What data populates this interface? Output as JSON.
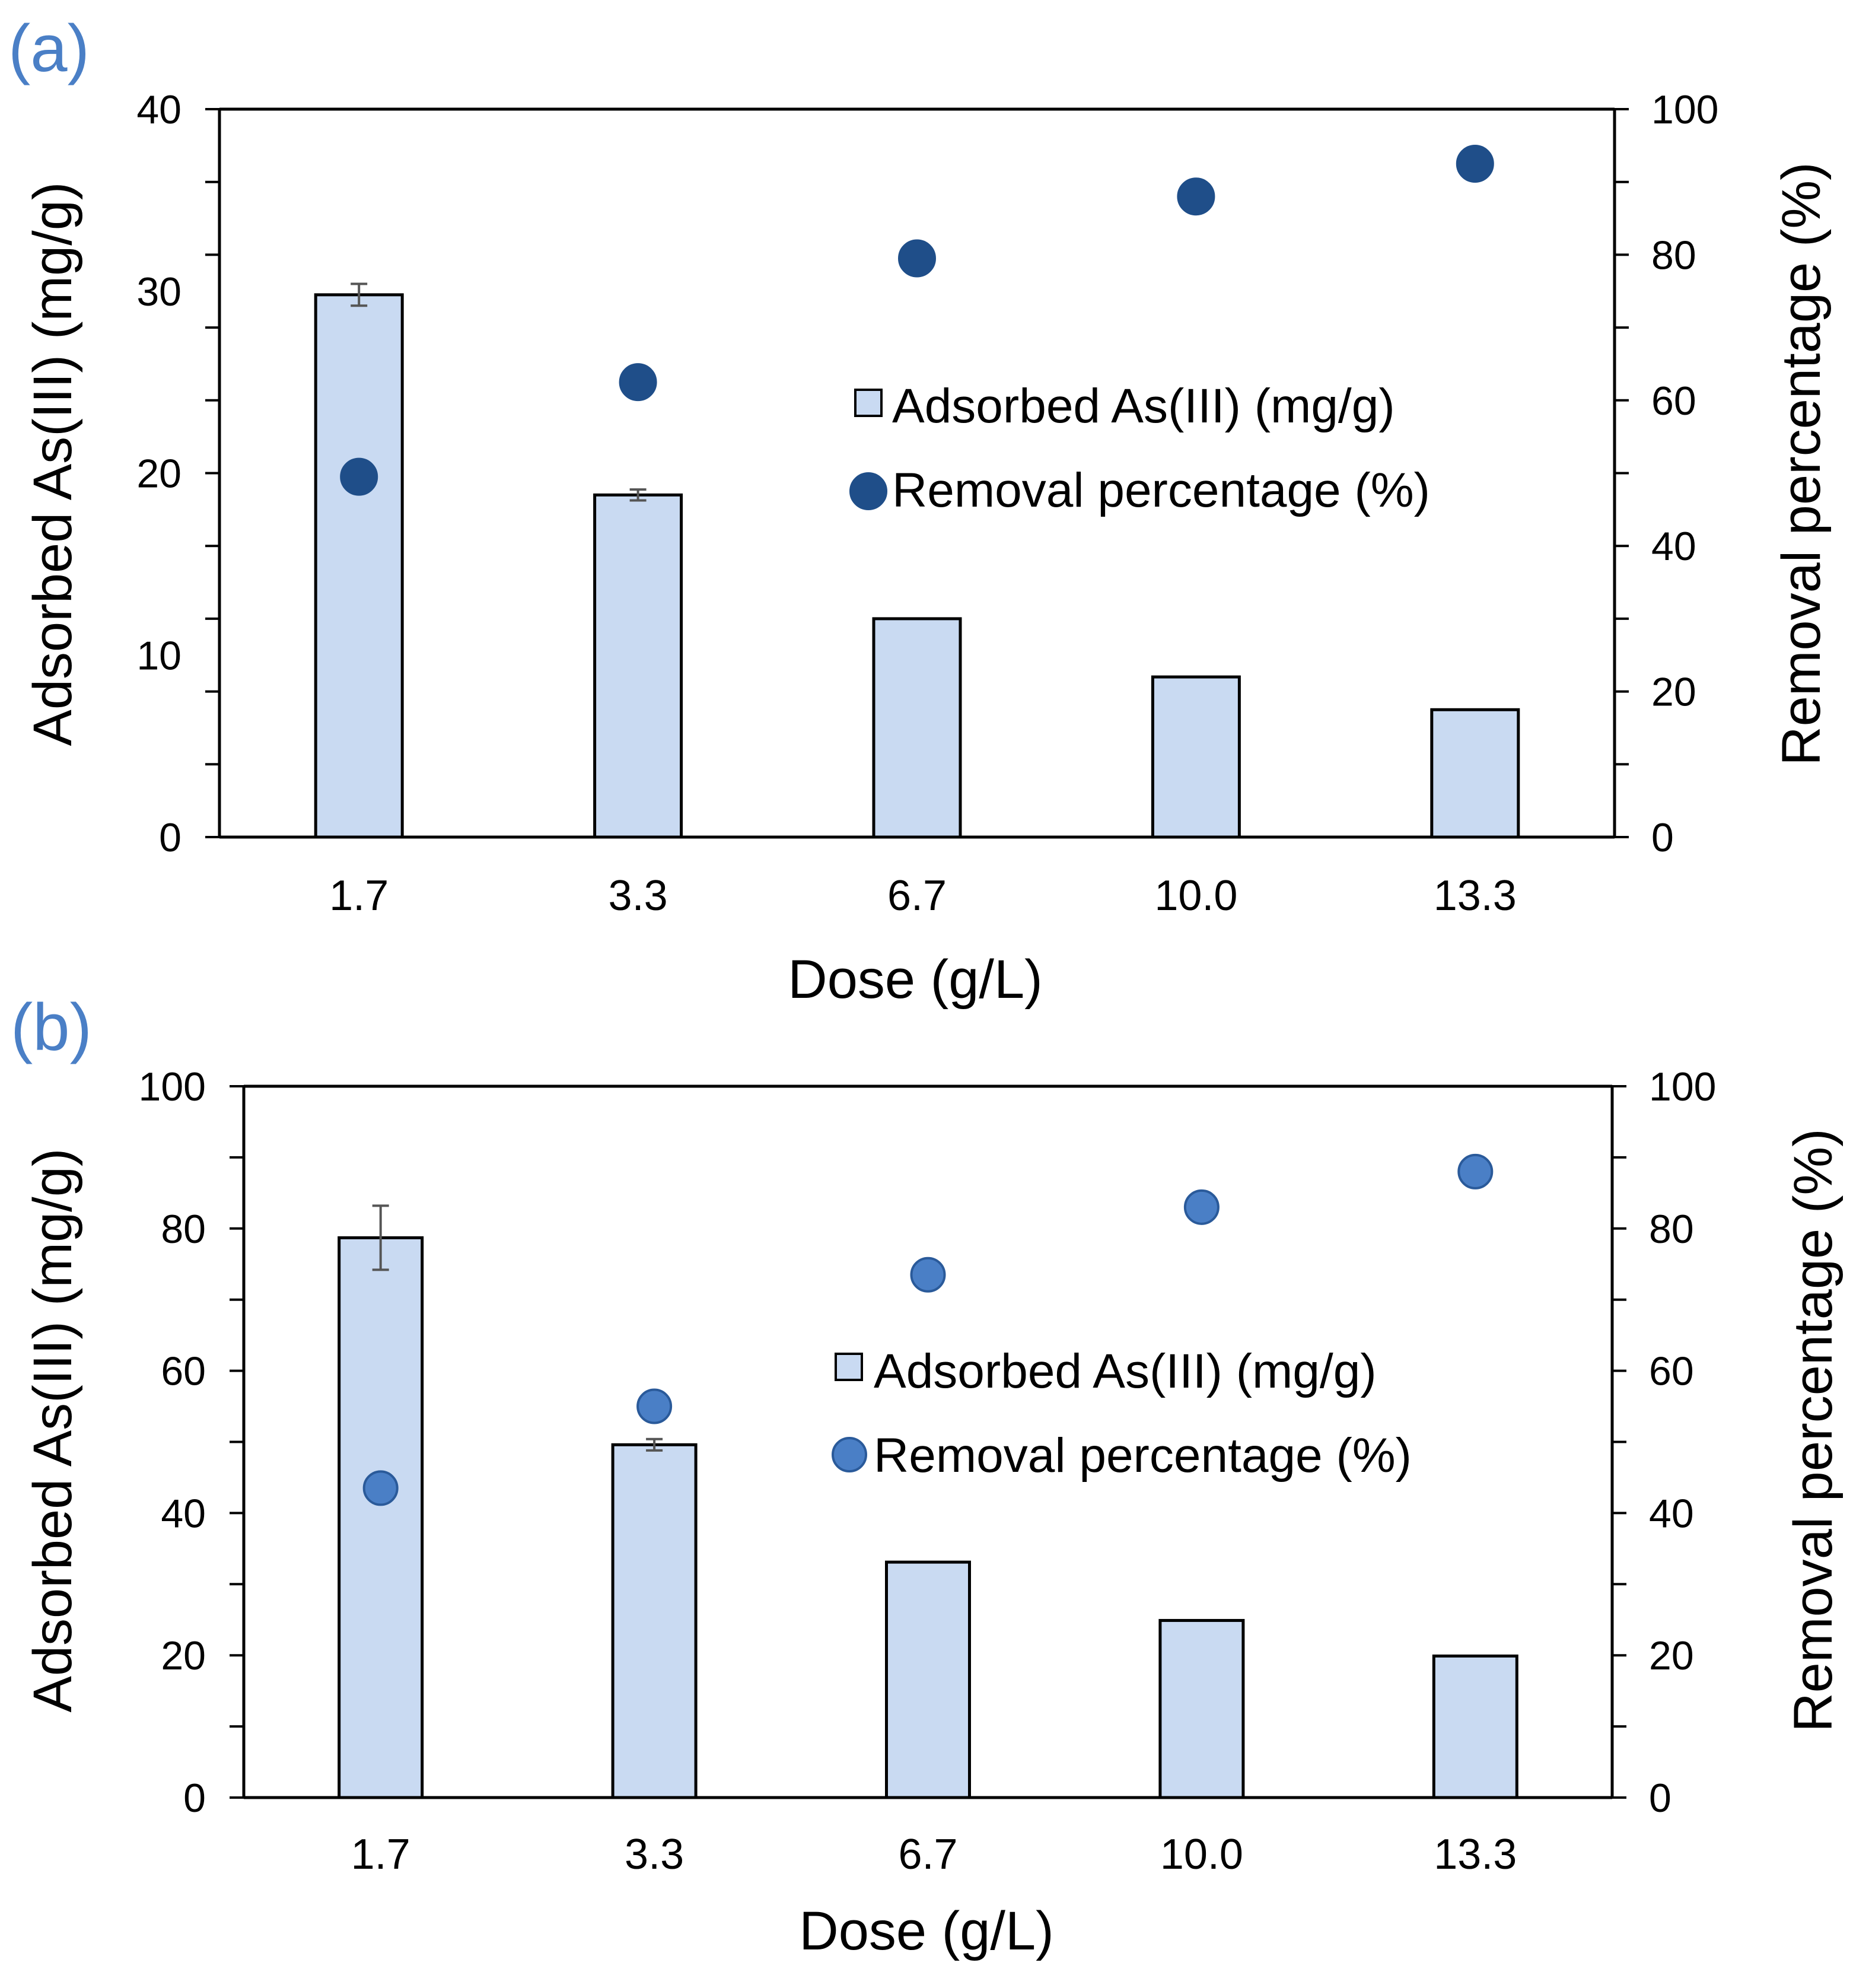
{
  "chart_data": [
    {
      "panel_label": "(a)",
      "type": "bar",
      "categories": [
        "1.7",
        "3.3",
        "6.7",
        "10.0",
        "13.3"
      ],
      "xlabel": "Dose (g/L)",
      "ylabel": "Adsorbed As(III) (mg/g)",
      "y2label": "Removal percentage (%)",
      "ylim": [
        0,
        40
      ],
      "yticks": [
        "0",
        "10",
        "20",
        "30",
        "40"
      ],
      "y2lim": [
        0,
        100
      ],
      "y2ticks": [
        "0",
        "20",
        "40",
        "60",
        "80",
        "100"
      ],
      "series": [
        {
          "name": "Adsorbed As(III) (mg/g)",
          "kind": "bar",
          "axis": "left",
          "values": [
            29.8,
            18.8,
            12.0,
            8.8,
            7.0
          ],
          "errors": [
            0.6,
            0.3,
            0.0,
            0.0,
            0.0
          ]
        },
        {
          "name": "Removal percentage (%)",
          "kind": "scatter",
          "axis": "right",
          "values": [
            49.5,
            62.5,
            79.5,
            88.0,
            92.5
          ]
        }
      ],
      "legend_position": "center-right",
      "grid": false
    },
    {
      "panel_label": "(b)",
      "type": "bar",
      "categories": [
        "1.7",
        "3.3",
        "6.7",
        "10.0",
        "13.3"
      ],
      "xlabel": "Dose (g/L)",
      "ylabel": "Adsorbed As(III) (mg/g)",
      "y2label": "Removal percentage (%)",
      "ylim": [
        0,
        100
      ],
      "yticks": [
        "0",
        "20",
        "40",
        "60",
        "80",
        "100"
      ],
      "y2lim": [
        0,
        100
      ],
      "y2ticks": [
        "0",
        "20",
        "40",
        "60",
        "80",
        "100"
      ],
      "series": [
        {
          "name": "Adsorbed As(III) (mg/g)",
          "kind": "bar",
          "axis": "left",
          "values": [
            78.7,
            49.6,
            33.1,
            24.9,
            19.9
          ],
          "errors": [
            4.5,
            0.8,
            0.0,
            0.0,
            0.0
          ]
        },
        {
          "name": "Removal percentage (%)",
          "kind": "scatter",
          "axis": "right",
          "values": [
            43.5,
            55.0,
            73.5,
            83.0,
            88.0
          ]
        }
      ],
      "legend_position": "center-right",
      "grid": false
    }
  ],
  "colors": {
    "bar_fill": "#c9daf2",
    "bar_stroke": "#000000",
    "panel_a_marker": "#1f4e89",
    "panel_b_marker": "#4a7fc6",
    "panel_b_marker_stroke": "#2a5a9a",
    "panel_label": "#4a7fc6",
    "axis": "#000000",
    "text": "#000000",
    "error_bar": "#555555"
  }
}
